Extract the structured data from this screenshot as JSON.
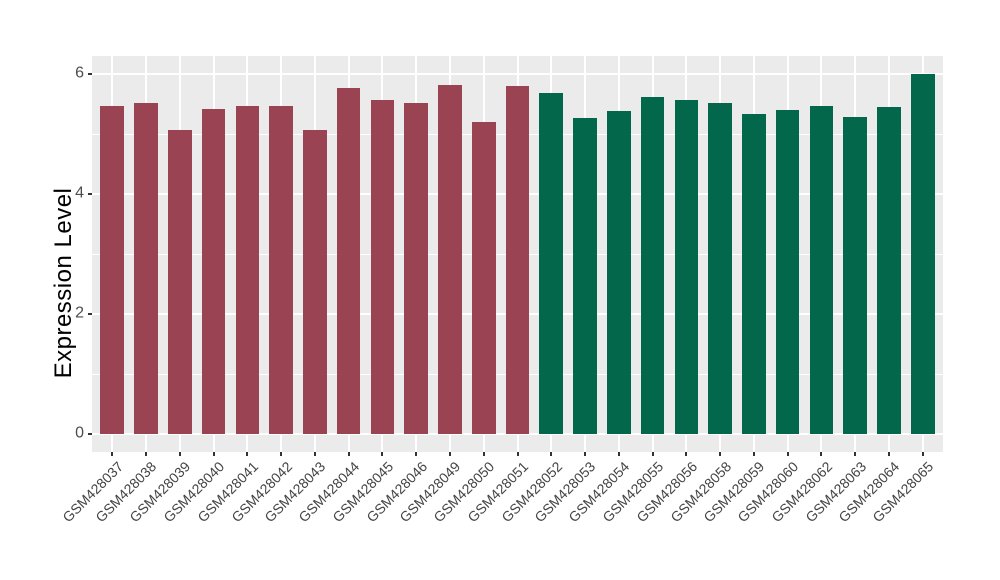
{
  "chart_data": {
    "type": "bar",
    "title": "",
    "xlabel": "",
    "ylabel": "Expression Level",
    "ylim": [
      -0.3,
      6.3
    ],
    "yticks": [
      0,
      2,
      4,
      6
    ],
    "yticks_minor": [
      1,
      3,
      5
    ],
    "grid": true,
    "legend_position": "none",
    "categories": [
      "GSM428037",
      "GSM428038",
      "GSM428039",
      "GSM428040",
      "GSM428041",
      "GSM428042",
      "GSM428043",
      "GSM428044",
      "GSM428045",
      "GSM428046",
      "GSM428049",
      "GSM428050",
      "GSM428051",
      "GSM428052",
      "GSM428053",
      "GSM428054",
      "GSM428055",
      "GSM428056",
      "GSM428058",
      "GSM428059",
      "GSM428060",
      "GSM428062",
      "GSM428063",
      "GSM428064",
      "GSM428065"
    ],
    "values": [
      5.47,
      5.52,
      5.06,
      5.42,
      5.46,
      5.46,
      5.07,
      5.76,
      5.57,
      5.52,
      5.82,
      5.2,
      5.8,
      5.68,
      5.27,
      5.38,
      5.62,
      5.56,
      5.51,
      5.33,
      5.4,
      5.46,
      5.29,
      5.45,
      6.0
    ],
    "bar_groups": [
      "maroon",
      "maroon",
      "maroon",
      "maroon",
      "maroon",
      "maroon",
      "maroon",
      "maroon",
      "maroon",
      "maroon",
      "maroon",
      "maroon",
      "maroon",
      "green",
      "green",
      "green",
      "green",
      "green",
      "green",
      "green",
      "green",
      "green",
      "green",
      "green",
      "green"
    ],
    "group_colors": {
      "maroon": "#9A4352",
      "green": "#03684B"
    },
    "panel_bg": "#EBEBEB",
    "grid_color": "#FFFFFF",
    "tick_label_color": "#4D4D4D",
    "bar_width_ratio": 0.7
  }
}
